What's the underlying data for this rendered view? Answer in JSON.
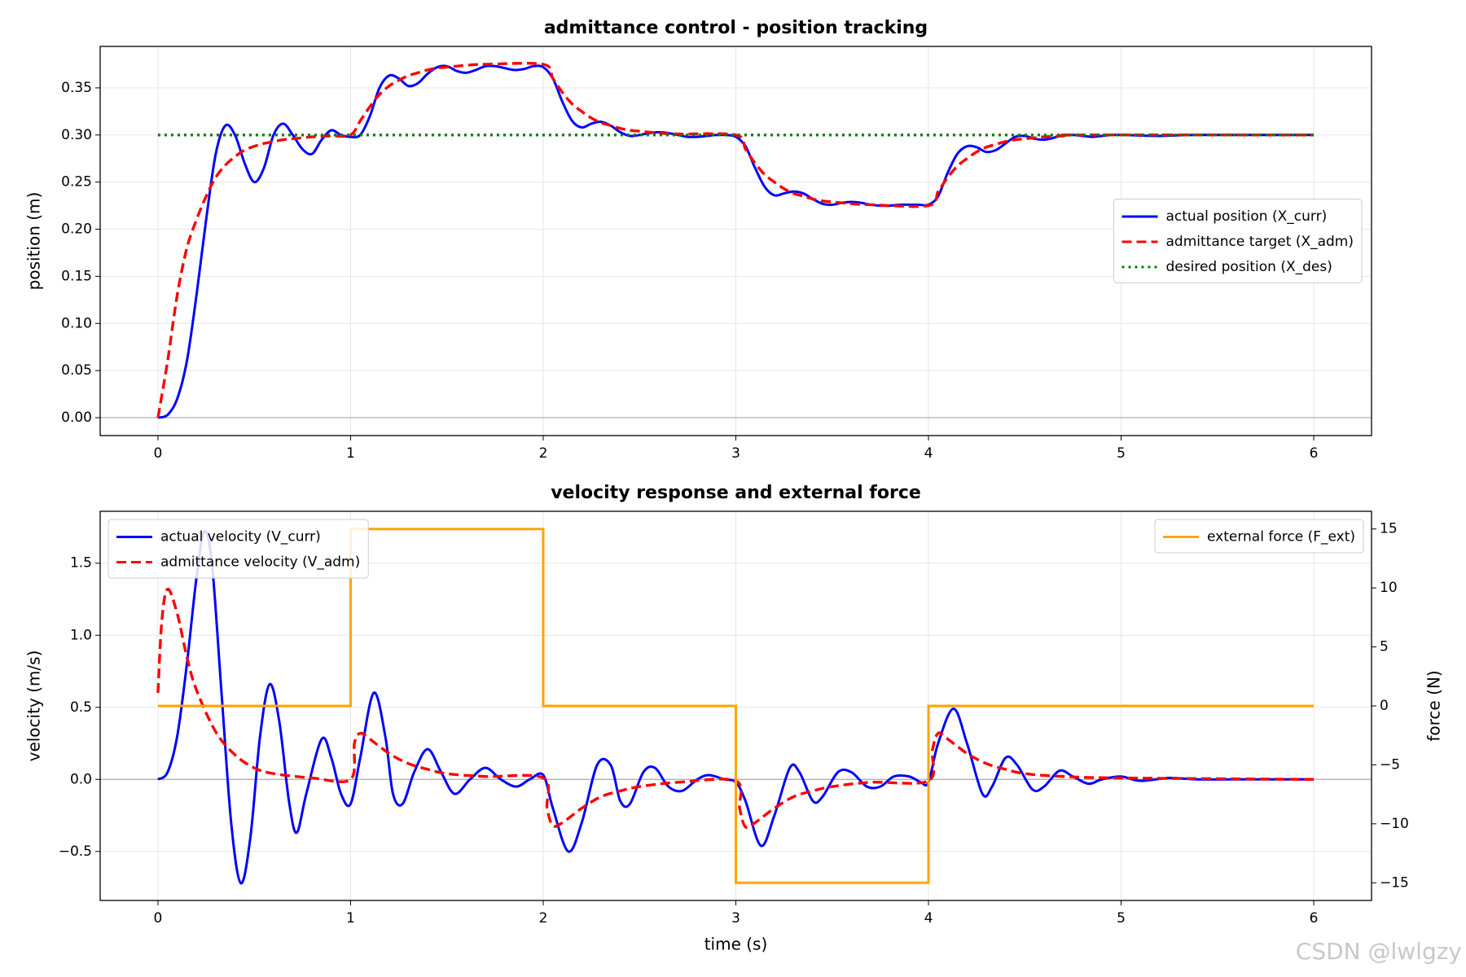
{
  "chart_data": [
    {
      "type": "line",
      "title": "admittance control - position tracking",
      "ylabel": "position (m)",
      "xlim": [
        -0.3,
        6.3
      ],
      "xticks": [
        0,
        1,
        2,
        3,
        4,
        5,
        6
      ],
      "ylim": [
        -0.019,
        0.394
      ],
      "yticks": [
        {
          "value": 0,
          "label": "0.00"
        },
        {
          "value": 0.05,
          "label": "0.05"
        },
        {
          "value": 0.1,
          "label": "0.10"
        },
        {
          "value": 0.15,
          "label": "0.15"
        },
        {
          "value": 0.2,
          "label": "0.20"
        },
        {
          "value": 0.25,
          "label": "0.25"
        },
        {
          "value": 0.3,
          "label": "0.30"
        },
        {
          "value": 0.35,
          "label": "0.35"
        }
      ],
      "grid": true,
      "legend": "center right",
      "series": [
        {
          "name": "actual position (X_curr)",
          "color": "#0000ff",
          "style": "solid",
          "x": [
            0,
            0.05,
            0.1,
            0.15,
            0.2,
            0.25,
            0.3,
            0.35,
            0.4,
            0.45,
            0.5,
            0.55,
            0.6,
            0.65,
            0.7,
            0.75,
            0.8,
            0.85,
            0.9,
            0.95,
            1,
            1.05,
            1.1,
            1.15,
            1.2,
            1.25,
            1.3,
            1.35,
            1.4,
            1.45,
            1.5,
            1.55,
            1.6,
            1.65,
            1.7,
            1.75,
            1.8,
            1.85,
            1.9,
            1.95,
            2,
            2.05,
            2.1,
            2.15,
            2.2,
            2.25,
            2.3,
            2.35,
            2.4,
            2.45,
            2.5,
            2.55,
            2.6,
            2.65,
            2.7,
            2.75,
            2.8,
            2.85,
            2.9,
            2.95,
            3,
            3.05,
            3.1,
            3.15,
            3.2,
            3.25,
            3.3,
            3.35,
            3.4,
            3.45,
            3.5,
            3.55,
            3.6,
            3.65,
            3.7,
            3.75,
            3.8,
            3.85,
            3.9,
            3.95,
            4,
            4.05,
            4.1,
            4.15,
            4.2,
            4.25,
            4.3,
            4.35,
            4.4,
            4.45,
            4.5,
            4.55,
            4.6,
            4.65,
            4.7,
            4.75,
            4.8,
            4.85,
            4.9,
            4.95,
            5,
            5.2,
            5.4,
            6
          ],
          "values": [
            0,
            0.003,
            0.02,
            0.06,
            0.13,
            0.21,
            0.28,
            0.31,
            0.3,
            0.27,
            0.25,
            0.265,
            0.3,
            0.312,
            0.3,
            0.285,
            0.28,
            0.295,
            0.305,
            0.3,
            0.298,
            0.3,
            0.32,
            0.35,
            0.363,
            0.36,
            0.352,
            0.355,
            0.365,
            0.372,
            0.373,
            0.368,
            0.366,
            0.369,
            0.373,
            0.373,
            0.371,
            0.369,
            0.37,
            0.373,
            0.372,
            0.36,
            0.335,
            0.315,
            0.308,
            0.312,
            0.314,
            0.31,
            0.303,
            0.299,
            0.3,
            0.302,
            0.303,
            0.302,
            0.3,
            0.298,
            0.298,
            0.299,
            0.3,
            0.3,
            0.298,
            0.288,
            0.265,
            0.245,
            0.236,
            0.238,
            0.24,
            0.238,
            0.232,
            0.227,
            0.226,
            0.228,
            0.229,
            0.228,
            0.226,
            0.225,
            0.225,
            0.226,
            0.226,
            0.226,
            0.226,
            0.235,
            0.26,
            0.28,
            0.288,
            0.287,
            0.282,
            0.284,
            0.291,
            0.298,
            0.299,
            0.296,
            0.295,
            0.297,
            0.3,
            0.3,
            0.299,
            0.298,
            0.299,
            0.3,
            0.3,
            0.299,
            0.3,
            0.3
          ]
        },
        {
          "name": "admittance target (X_adm)",
          "color": "#ff0000",
          "style": "dashed",
          "x": [
            0,
            0.05,
            0.1,
            0.15,
            0.2,
            0.25,
            0.3,
            0.35,
            0.4,
            0.45,
            0.5,
            0.55,
            0.6,
            0.65,
            0.7,
            0.75,
            0.8,
            0.9,
            1,
            1.05,
            1.1,
            1.15,
            1.2,
            1.25,
            1.3,
            1.35,
            1.4,
            1.45,
            1.5,
            1.55,
            1.6,
            1.7,
            2,
            2.05,
            2.1,
            2.15,
            2.2,
            2.25,
            2.3,
            2.35,
            2.4,
            2.45,
            2.5,
            2.55,
            2.6,
            2.7,
            3,
            3.05,
            3.1,
            3.15,
            3.2,
            3.25,
            3.3,
            3.35,
            3.4,
            3.45,
            3.5,
            3.55,
            3.6,
            3.7,
            4,
            4.05,
            4.1,
            4.15,
            4.2,
            4.25,
            4.3,
            4.35,
            4.4,
            4.45,
            4.5,
            4.55,
            4.6,
            4.7,
            4.8,
            6
          ],
          "values": [
            0,
            0.06,
            0.13,
            0.18,
            0.21,
            0.235,
            0.255,
            0.268,
            0.277,
            0.284,
            0.288,
            0.291,
            0.293,
            0.295,
            0.296,
            0.297,
            0.298,
            0.299,
            0.3,
            0.315,
            0.33,
            0.343,
            0.352,
            0.358,
            0.363,
            0.366,
            0.369,
            0.371,
            0.372,
            0.373,
            0.374,
            0.375,
            0.375,
            0.36,
            0.345,
            0.333,
            0.325,
            0.318,
            0.313,
            0.31,
            0.307,
            0.305,
            0.304,
            0.303,
            0.302,
            0.301,
            0.3,
            0.285,
            0.27,
            0.258,
            0.25,
            0.243,
            0.238,
            0.235,
            0.232,
            0.23,
            0.229,
            0.228,
            0.227,
            0.226,
            0.225,
            0.24,
            0.255,
            0.267,
            0.275,
            0.282,
            0.287,
            0.29,
            0.293,
            0.295,
            0.296,
            0.297,
            0.298,
            0.299,
            0.3,
            0.3
          ]
        },
        {
          "name": "desired position (X_des)",
          "color": "#008000",
          "style": "dotted",
          "x": [
            0,
            6
          ],
          "values": [
            0.3,
            0.3
          ]
        }
      ]
    },
    {
      "type": "line",
      "title": "velocity response and external force",
      "xlabel": "time (s)",
      "ylabel": "velocity (m/s)",
      "ylabel_color": "#0000ff",
      "y2label": "force (N)",
      "y2label_color": "#ffa500",
      "xlim": [
        -0.3,
        6.3
      ],
      "xticks": [
        0,
        1,
        2,
        3,
        4,
        5,
        6
      ],
      "ylim": [
        -0.84,
        1.86
      ],
      "yticks": [
        {
          "value": -0.5,
          "label": "−0.5"
        },
        {
          "value": 0,
          "label": "0.0"
        },
        {
          "value": 0.5,
          "label": "0.5"
        },
        {
          "value": 1,
          "label": "1.0"
        },
        {
          "value": 1.5,
          "label": "1.5"
        }
      ],
      "y2lim": [
        -16.5,
        16.5
      ],
      "y2ticks": [
        {
          "value": -15,
          "label": "−15"
        },
        {
          "value": -10,
          "label": "−10"
        },
        {
          "value": -5,
          "label": "−5"
        },
        0,
        5,
        10,
        15
      ],
      "grid": true,
      "legend": "upper left",
      "legend2": "upper right",
      "series": [
        {
          "name": "actual velocity (V_curr)",
          "color": "#0000ff",
          "style": "solid",
          "x": [
            0,
            0.05,
            0.1,
            0.15,
            0.2,
            0.24,
            0.28,
            0.33,
            0.38,
            0.43,
            0.48,
            0.53,
            0.58,
            0.63,
            0.68,
            0.72,
            0.77,
            0.85,
            0.9,
            0.95,
            1,
            1.05,
            1.12,
            1.18,
            1.22,
            1.27,
            1.33,
            1.4,
            1.47,
            1.54,
            1.62,
            1.7,
            1.78,
            1.86,
            1.93,
            2,
            2.05,
            2.13,
            2.2,
            2.28,
            2.35,
            2.4,
            2.45,
            2.52,
            2.58,
            2.65,
            2.72,
            2.8,
            2.86,
            2.94,
            3,
            3.05,
            3.13,
            3.2,
            3.28,
            3.33,
            3.4,
            3.45,
            3.53,
            3.6,
            3.68,
            3.75,
            3.82,
            3.9,
            3.96,
            4,
            4.05,
            4.13,
            4.2,
            4.28,
            4.33,
            4.4,
            4.46,
            4.54,
            4.6,
            4.68,
            4.75,
            4.83,
            4.9,
            5,
            5.1,
            5.25,
            5.4,
            5.6,
            6
          ],
          "values": [
            0,
            0.05,
            0.3,
            0.8,
            1.4,
            1.72,
            1.5,
            0.6,
            -0.3,
            -0.72,
            -0.4,
            0.3,
            0.66,
            0.4,
            -0.15,
            -0.37,
            -0.1,
            0.28,
            0.15,
            -0.1,
            -0.17,
            0.15,
            0.6,
            0.3,
            -0.1,
            -0.17,
            0.05,
            0.21,
            0.05,
            -0.1,
            0,
            0.08,
            0,
            -0.05,
            0,
            0.03,
            -0.2,
            -0.5,
            -0.3,
            0.1,
            0.1,
            -0.15,
            -0.17,
            0.05,
            0.08,
            -0.05,
            -0.08,
            0,
            0.03,
            0,
            -0.02,
            -0.15,
            -0.46,
            -0.25,
            0.08,
            0.05,
            -0.15,
            -0.12,
            0.05,
            0.05,
            -0.05,
            -0.05,
            0.02,
            0.02,
            -0.02,
            -0.02,
            0.25,
            0.49,
            0.25,
            -0.1,
            -0.05,
            0.15,
            0.1,
            -0.07,
            -0.05,
            0.06,
            0.02,
            -0.03,
            0,
            0.02,
            -0.01,
            0.01,
            0,
            0,
            0
          ]
        },
        {
          "name": "admittance velocity (V_adm)",
          "color": "#ff0000",
          "style": "dashed",
          "x": [
            0,
            0.02,
            0.05,
            0.1,
            0.15,
            0.2,
            0.3,
            0.4,
            0.5,
            0.6,
            0.8,
            1,
            1.02,
            1.05,
            1.1,
            1.2,
            1.3,
            1.4,
            1.5,
            1.7,
            2,
            2.02,
            2.05,
            2.1,
            2.2,
            2.3,
            2.4,
            2.5,
            2.7,
            3,
            3.02,
            3.05,
            3.1,
            3.2,
            3.3,
            3.4,
            3.5,
            3.7,
            4,
            4.02,
            4.05,
            4.1,
            4.2,
            4.3,
            4.4,
            4.5,
            4.7,
            5,
            6
          ],
          "values": [
            0.6,
            1.1,
            1.32,
            1.15,
            0.85,
            0.62,
            0.33,
            0.17,
            0.08,
            0.04,
            0.01,
            0,
            0.25,
            0.32,
            0.28,
            0.18,
            0.11,
            0.07,
            0.04,
            0.02,
            0.01,
            -0.2,
            -0.32,
            -0.3,
            -0.2,
            -0.12,
            -0.08,
            -0.05,
            -0.02,
            -0.01,
            -0.2,
            -0.33,
            -0.3,
            -0.2,
            -0.12,
            -0.08,
            -0.05,
            -0.02,
            -0.01,
            0.2,
            0.32,
            0.28,
            0.18,
            0.11,
            0.07,
            0.04,
            0.02,
            0.01,
            0
          ]
        },
        {
          "name": "external force (F_ext)",
          "color": "#ffa500",
          "style": "solid",
          "axis": "y2",
          "drawstyle": "steps-post",
          "x": [
            0,
            1,
            2,
            3,
            4,
            6
          ],
          "values": [
            0,
            15,
            0,
            -15,
            0,
            0
          ]
        }
      ]
    }
  ],
  "watermark": "CSDN @lwlgzy"
}
